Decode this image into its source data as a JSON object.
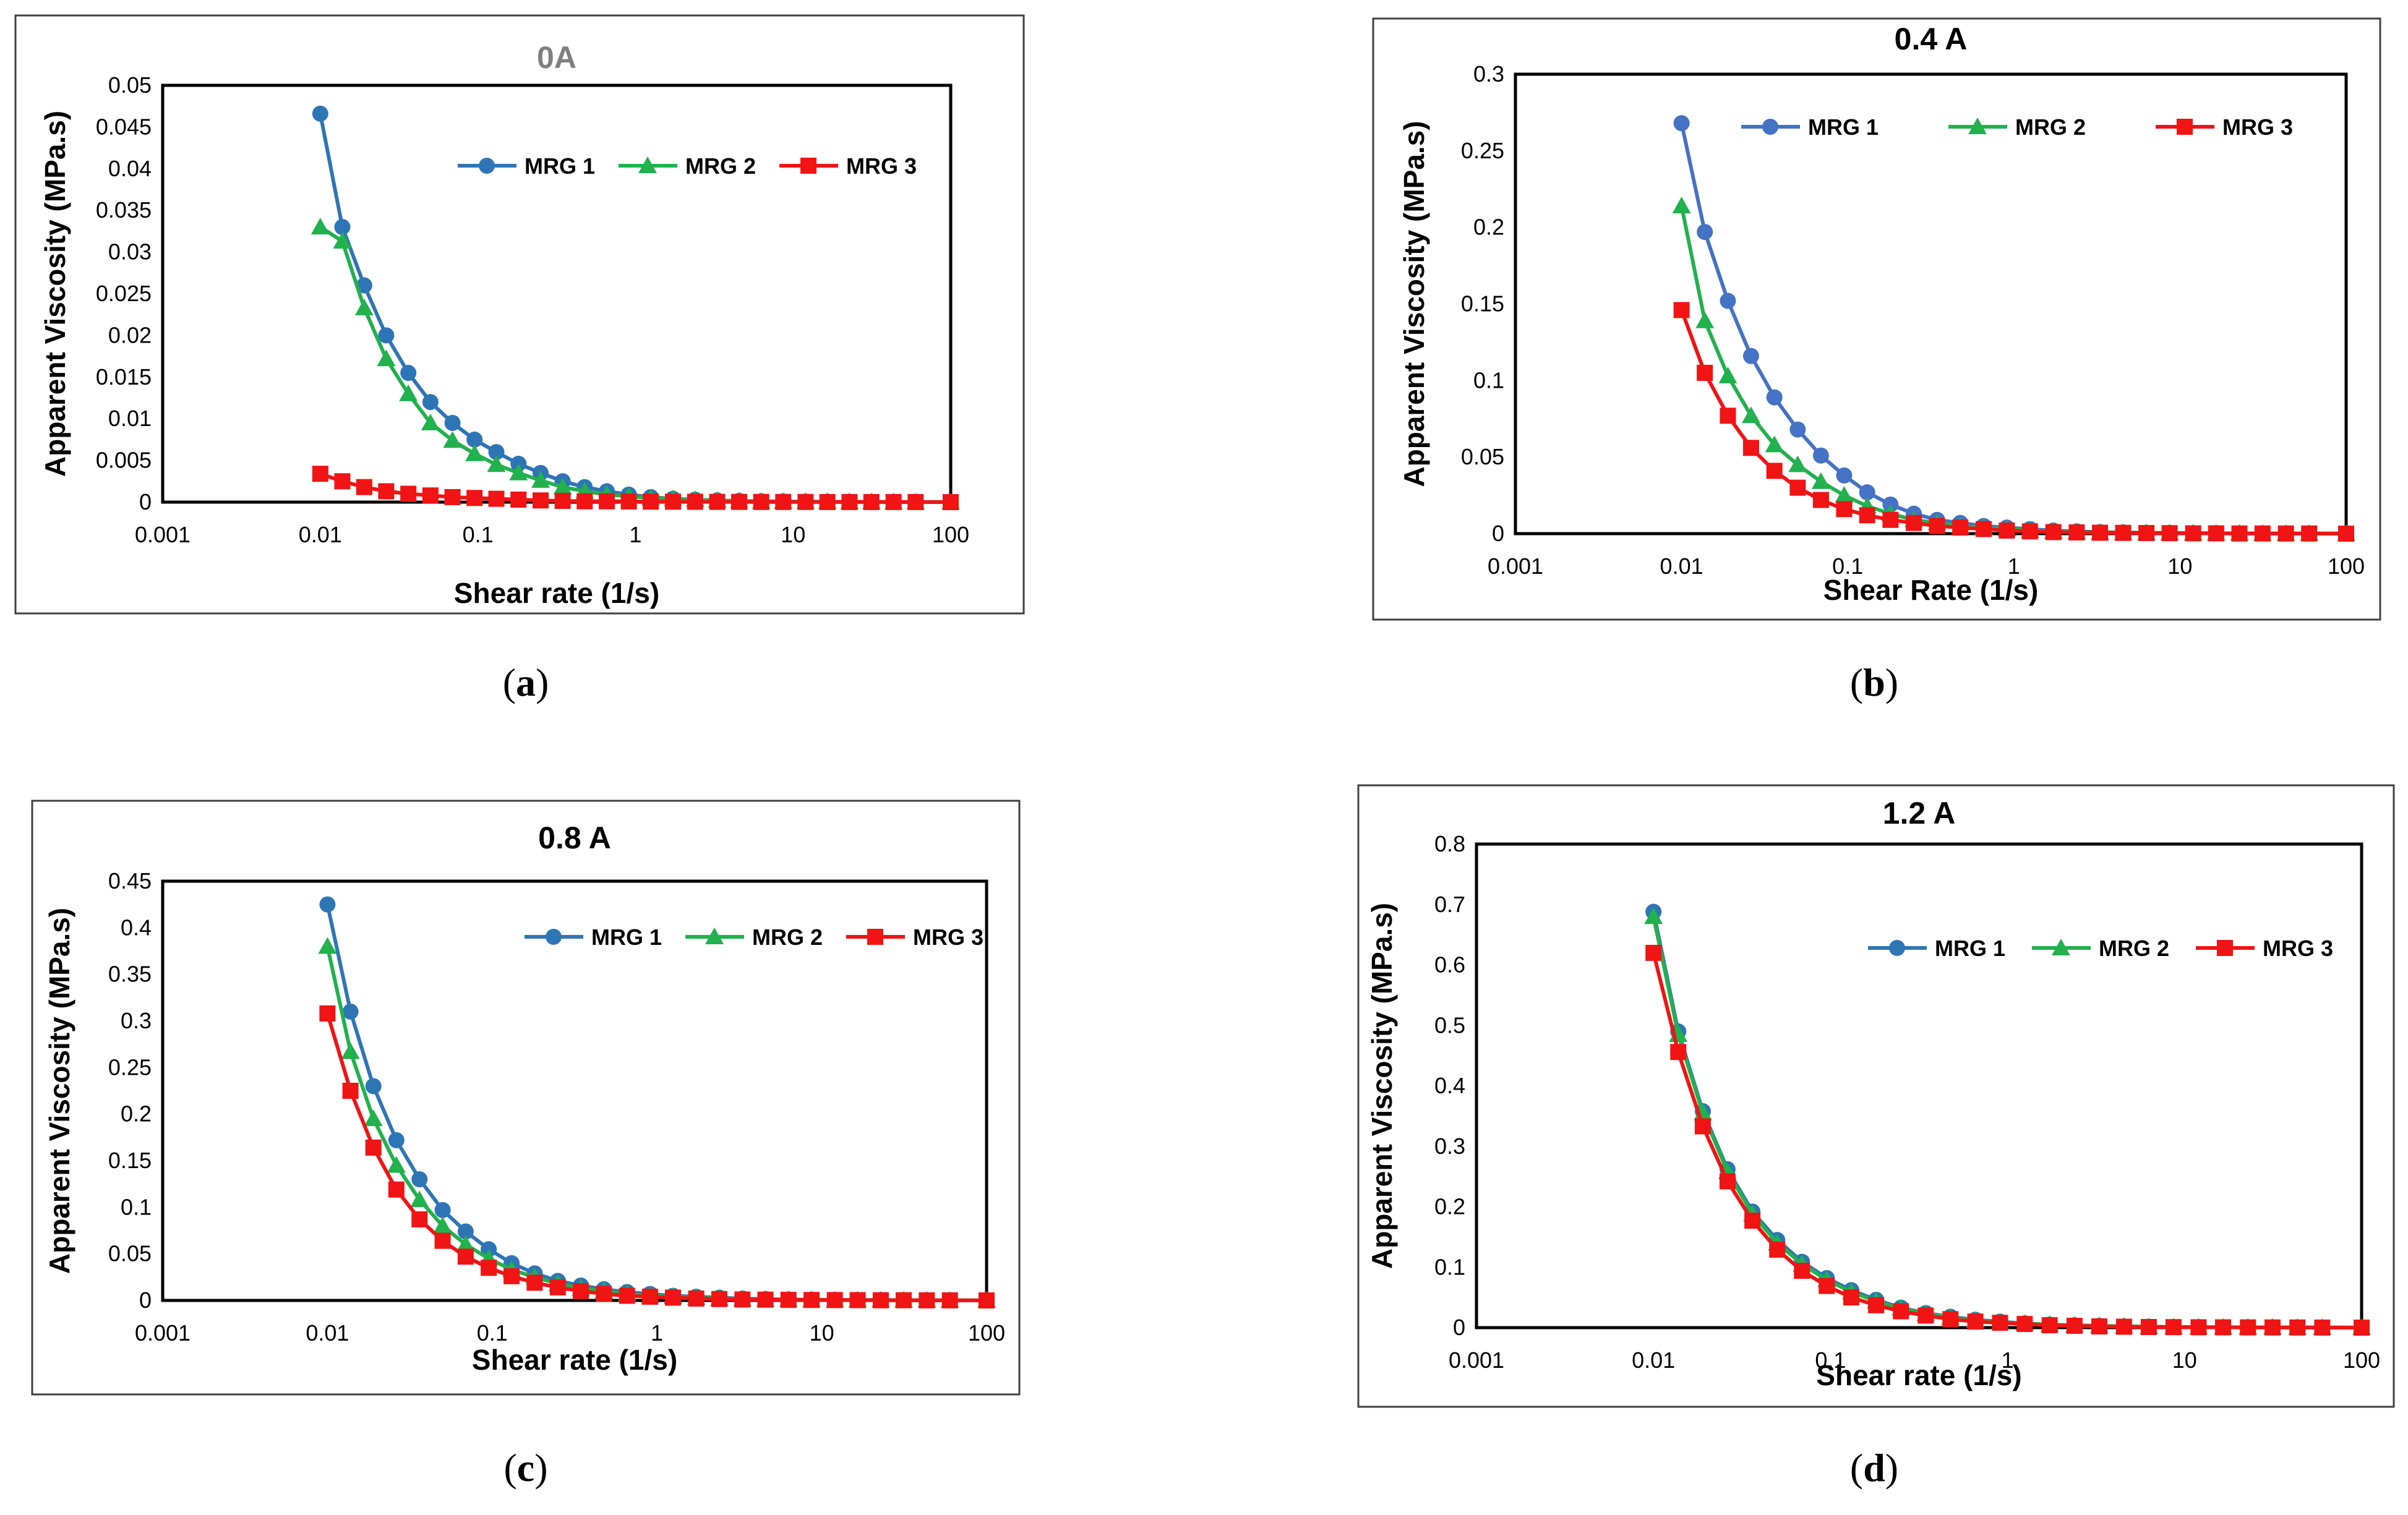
{
  "figure": {
    "panel_labels": [
      "(a)",
      "(b)",
      "(c)",
      "(d)"
    ],
    "panel_letters": [
      "a",
      "b",
      "c",
      "d"
    ]
  },
  "chart_data": [
    {
      "type": "line",
      "title": "0A",
      "xlabel": "Shear rate (1/s)",
      "ylabel": "Apparent Viscosity (MPa.s)",
      "xscale": "log",
      "xlim": [
        0.001,
        100
      ],
      "ylim": [
        0,
        0.05
      ],
      "xticks": [
        "0.001",
        "0.01",
        "0.1",
        "1",
        "10",
        "100"
      ],
      "yticks": [
        "0",
        "0.005",
        "0.01",
        "0.015",
        "0.02",
        "0.025",
        "0.03",
        "0.035",
        "0.04",
        "0.045",
        "0.05"
      ],
      "legend_position": "top-right",
      "x": [
        0.01,
        0.0138,
        0.019,
        0.0262,
        0.0362,
        0.05,
        0.069,
        0.0952,
        0.131,
        0.181,
        0.25,
        0.345,
        0.476,
        0.658,
        0.907,
        1.25,
        1.73,
        2.39,
        3.3,
        4.55,
        6.28,
        8.66,
        12,
        16.5,
        22.8,
        31.4,
        43.4,
        59.9,
        100
      ],
      "series": [
        {
          "name": "MRG 1",
          "color": "#2E75B6",
          "marker": "circle",
          "values": [
            0.0466,
            0.033,
            0.026,
            0.02,
            0.0155,
            0.012,
            0.0095,
            0.0075,
            0.006,
            0.0046,
            0.0035,
            0.0025,
            0.0018,
            0.0013,
            0.0009,
            0.0006,
            0.0004,
            0.0003,
            0.0002,
            0.00015,
            0.0001,
            8e-05,
            6e-05,
            5e-05,
            4e-05,
            3e-05,
            2e-05,
            2e-05,
            1e-05
          ]
        },
        {
          "name": "MRG 2",
          "color": "#21B14D",
          "marker": "triangle",
          "values": [
            0.033,
            0.0313,
            0.0233,
            0.0172,
            0.013,
            0.0095,
            0.0074,
            0.0058,
            0.0045,
            0.0035,
            0.0026,
            0.0018,
            0.0013,
            0.0009,
            0.0007,
            0.0005,
            0.0004,
            0.0003,
            0.0002,
            0.00015,
            0.0001,
            8e-05,
            6e-05,
            5e-05,
            4e-05,
            3e-05,
            2e-05,
            2e-05,
            1e-05
          ]
        },
        {
          "name": "MRG 3",
          "color": "#F01414",
          "marker": "square",
          "values": [
            0.0034,
            0.0025,
            0.0018,
            0.0013,
            0.001,
            0.0008,
            0.0006,
            0.0005,
            0.0004,
            0.0003,
            0.0002,
            0.00015,
            0.0001,
            0.0001,
            8e-05,
            6e-05,
            5e-05,
            4e-05,
            3e-05,
            3e-05,
            2e-05,
            2e-05,
            2e-05,
            1e-05,
            1e-05,
            1e-05,
            1e-05,
            1e-05,
            0
          ]
        }
      ]
    },
    {
      "type": "line",
      "title": "0.4 A",
      "xlabel": "Shear Rate (1/s)",
      "ylabel": "Apparent Viscosity (MPa.s)",
      "xscale": "log",
      "xlim": [
        0.001,
        100
      ],
      "ylim": [
        0,
        0.3
      ],
      "xticks": [
        "0.001",
        "0.01",
        "0.1",
        "1",
        "10",
        "100"
      ],
      "yticks": [
        "0",
        "0.05",
        "0.1",
        "0.15",
        "0.2",
        "0.25",
        "0.3"
      ],
      "legend_position": "top-right",
      "x": [
        0.01,
        0.0138,
        0.019,
        0.0262,
        0.0362,
        0.05,
        0.069,
        0.0952,
        0.131,
        0.181,
        0.25,
        0.345,
        0.476,
        0.658,
        0.907,
        1.25,
        1.73,
        2.39,
        3.3,
        4.55,
        6.28,
        8.66,
        12,
        16.5,
        22.8,
        31.4,
        43.4,
        59.9,
        100
      ],
      "series": [
        {
          "name": "MRG 1",
          "color": "#4472C4",
          "marker": "circle",
          "values": [
            0.268,
            0.197,
            0.152,
            0.116,
            0.089,
            0.068,
            0.051,
            0.038,
            0.027,
            0.019,
            0.013,
            0.009,
            0.007,
            0.005,
            0.004,
            0.003,
            0.002,
            0.0015,
            0.001,
            0.0008,
            0.0006,
            0.0005,
            0.0004,
            0.0003,
            0.0002,
            0.0002,
            0.0001,
            0.0001,
            0.0001
          ]
        },
        {
          "name": "MRG 2",
          "color": "#21B14D",
          "marker": "triangle",
          "values": [
            0.214,
            0.139,
            0.103,
            0.077,
            0.058,
            0.045,
            0.034,
            0.025,
            0.018,
            0.013,
            0.009,
            0.007,
            0.005,
            0.004,
            0.003,
            0.002,
            0.0015,
            0.001,
            0.0008,
            0.0006,
            0.0005,
            0.0004,
            0.0003,
            0.0002,
            0.0002,
            0.0001,
            0.0001,
            0.0001,
            0.0001
          ]
        },
        {
          "name": "MRG 3",
          "color": "#F01414",
          "marker": "square",
          "values": [
            0.146,
            0.105,
            0.077,
            0.056,
            0.041,
            0.03,
            0.022,
            0.016,
            0.012,
            0.009,
            0.007,
            0.005,
            0.004,
            0.003,
            0.002,
            0.0015,
            0.001,
            0.0008,
            0.0006,
            0.0005,
            0.0004,
            0.0003,
            0.0002,
            0.0002,
            0.0001,
            0.0001,
            0.0001,
            0.0001,
            0
          ]
        }
      ]
    },
    {
      "type": "line",
      "title": "0.8 A",
      "xlabel": "Shear rate (1/s)",
      "ylabel": "Apparent Viscosity (MPa.s)",
      "xscale": "log",
      "xlim": [
        0.001,
        100
      ],
      "ylim": [
        0,
        0.45
      ],
      "xticks": [
        "0.001",
        "0.01",
        "0.1",
        "1",
        "10",
        "100"
      ],
      "yticks": [
        "0",
        "0.05",
        "0.1",
        "0.15",
        "0.2",
        "0.25",
        "0.3",
        "0.35",
        "0.4",
        "0.45"
      ],
      "legend_position": "top-right",
      "x": [
        0.01,
        0.0138,
        0.019,
        0.0262,
        0.0362,
        0.05,
        0.069,
        0.0952,
        0.131,
        0.181,
        0.25,
        0.345,
        0.476,
        0.658,
        0.907,
        1.25,
        1.73,
        2.39,
        3.3,
        4.55,
        6.28,
        8.66,
        12,
        16.5,
        22.8,
        31.4,
        43.4,
        59.9,
        100
      ],
      "series": [
        {
          "name": "MRG 1",
          "color": "#2E75B6",
          "marker": "circle",
          "values": [
            0.425,
            0.31,
            0.23,
            0.172,
            0.13,
            0.097,
            0.074,
            0.055,
            0.04,
            0.029,
            0.021,
            0.016,
            0.012,
            0.009,
            0.007,
            0.005,
            0.004,
            0.003,
            0.002,
            0.0015,
            0.001,
            0.0008,
            0.0006,
            0.0005,
            0.0004,
            0.0003,
            0.0002,
            0.0002,
            0.0001
          ]
        },
        {
          "name": "MRG 2",
          "color": "#21B14D",
          "marker": "triangle",
          "values": [
            0.38,
            0.267,
            0.195,
            0.145,
            0.108,
            0.08,
            0.06,
            0.045,
            0.033,
            0.025,
            0.018,
            0.013,
            0.01,
            0.007,
            0.005,
            0.004,
            0.003,
            0.002,
            0.0015,
            0.001,
            0.0008,
            0.0006,
            0.0005,
            0.0004,
            0.0003,
            0.0002,
            0.0002,
            0.0001,
            0.0001
          ]
        },
        {
          "name": "MRG 3",
          "color": "#F01414",
          "marker": "square",
          "values": [
            0.308,
            0.225,
            0.164,
            0.119,
            0.087,
            0.064,
            0.047,
            0.035,
            0.026,
            0.019,
            0.014,
            0.01,
            0.007,
            0.005,
            0.004,
            0.003,
            0.002,
            0.0015,
            0.001,
            0.0008,
            0.0006,
            0.0005,
            0.0004,
            0.0003,
            0.0002,
            0.0002,
            0.0001,
            0.0001,
            0
          ]
        }
      ]
    },
    {
      "type": "line",
      "title": "1.2 A",
      "xlabel": "Shear rate (1/s)",
      "ylabel": "Apparent Viscosity (MPa.s)",
      "xscale": "log",
      "xlim": [
        0.001,
        100
      ],
      "ylim": [
        0,
        0.8
      ],
      "xticks": [
        "0.001",
        "0.01",
        "0.1",
        "1",
        "10",
        "100"
      ],
      "yticks": [
        "0",
        "0.1",
        "0.2",
        "0.3",
        "0.4",
        "0.5",
        "0.6",
        "0.7",
        "0.8"
      ],
      "legend_position": "top-right",
      "x": [
        0.01,
        0.0138,
        0.019,
        0.0262,
        0.0362,
        0.05,
        0.069,
        0.0952,
        0.131,
        0.181,
        0.25,
        0.345,
        0.476,
        0.658,
        0.907,
        1.25,
        1.73,
        2.39,
        3.3,
        4.55,
        6.28,
        8.66,
        12,
        16.5,
        22.8,
        31.4,
        43.4,
        59.9,
        100
      ],
      "series": [
        {
          "name": "MRG 1",
          "color": "#2E75B6",
          "marker": "circle",
          "values": [
            0.688,
            0.49,
            0.358,
            0.262,
            0.192,
            0.145,
            0.109,
            0.082,
            0.062,
            0.046,
            0.033,
            0.024,
            0.018,
            0.013,
            0.01,
            0.007,
            0.005,
            0.004,
            0.003,
            0.002,
            0.0015,
            0.001,
            0.0008,
            0.0006,
            0.0005,
            0.0004,
            0.0003,
            0.0002,
            0.0001
          ]
        },
        {
          "name": "MRG 2",
          "color": "#21B14D",
          "marker": "triangle",
          "values": [
            0.68,
            0.485,
            0.355,
            0.258,
            0.188,
            0.14,
            0.105,
            0.079,
            0.059,
            0.044,
            0.032,
            0.023,
            0.017,
            0.012,
            0.009,
            0.007,
            0.005,
            0.004,
            0.003,
            0.002,
            0.0015,
            0.001,
            0.0008,
            0.0006,
            0.0005,
            0.0004,
            0.0003,
            0.0002,
            0.0001
          ]
        },
        {
          "name": "MRG 3",
          "color": "#F01414",
          "marker": "square",
          "values": [
            0.62,
            0.456,
            0.333,
            0.242,
            0.177,
            0.129,
            0.094,
            0.069,
            0.05,
            0.037,
            0.027,
            0.02,
            0.014,
            0.01,
            0.008,
            0.006,
            0.004,
            0.003,
            0.002,
            0.0015,
            0.001,
            0.0008,
            0.0006,
            0.0005,
            0.0004,
            0.0003,
            0.0002,
            0.0001,
            0
          ]
        }
      ]
    }
  ]
}
